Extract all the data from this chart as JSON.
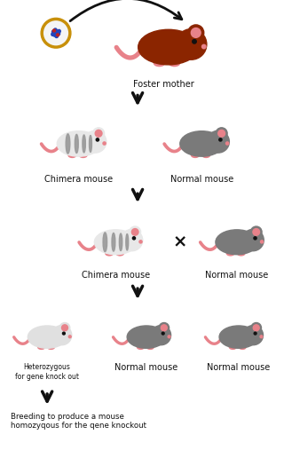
{
  "background_color": "#ffffff",
  "arrow_color": "#111111",
  "text_color": "#111111",
  "font_size_label": 7.0,
  "foster_mother_color": "#8B2500",
  "chimera_body_color": "#e8e8e8",
  "chimera_stripe_color": "#999999",
  "normal_mouse_color": "#7a7a7a",
  "hetero_mouse_color": "#e0e0e0",
  "pink_color": "#e8828a",
  "dark_eye": "#111111",
  "cross_color": "#111111",
  "cell_outer": "#c8900a",
  "cell_inner": "#ffffff",
  "cell_blue": "#2244bb",
  "cell_red": "#bb2222",
  "labels": {
    "foster_mother": "Foster mother",
    "chimera1": "Chimera mouse",
    "normal1": "Normal mouse",
    "chimera2": "Chimera mouse",
    "normal2": "Normal mouse",
    "hetero": "Heterozygous\nfor gene knock out",
    "normal3": "Normal mouse",
    "normal4": "Normal mouse",
    "bottom": "Breeding to produce a mouse\nhomozyqous for the qene knockout"
  }
}
